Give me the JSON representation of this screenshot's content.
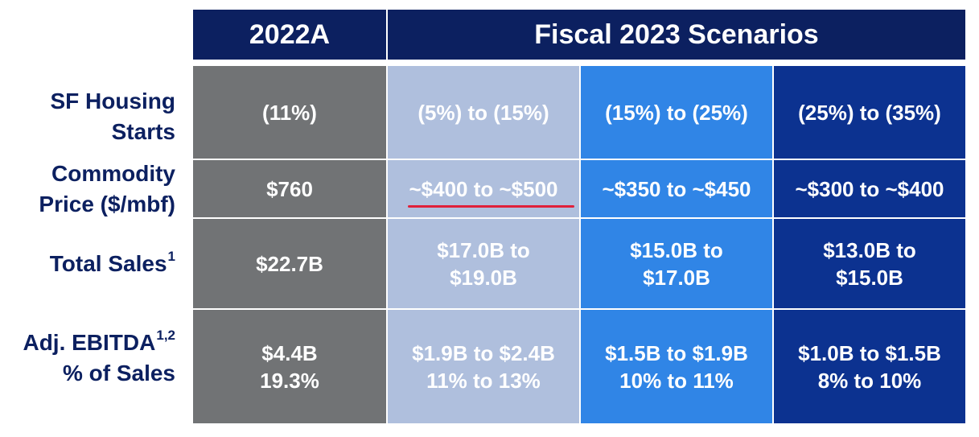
{
  "headers": {
    "actual": "2022A",
    "scenarios": "Fiscal 2023 Scenarios"
  },
  "rows": [
    {
      "label_lines": [
        "SF Housing",
        "Starts"
      ],
      "sup": "",
      "cells": [
        [
          "(11%)"
        ],
        [
          "(5%) to (15%)"
        ],
        [
          "(15%) to (25%)"
        ],
        [
          "(25%) to (35%)"
        ]
      ]
    },
    {
      "label_lines": [
        "Commodity",
        "Price ($/mbf)"
      ],
      "sup": "",
      "cells": [
        [
          "$760"
        ],
        [
          "~$400 to ~$500"
        ],
        [
          "~$350 to ~$450"
        ],
        [
          "~$300 to ~$400"
        ]
      ]
    },
    {
      "label_lines": [
        "Total Sales"
      ],
      "sup": "1",
      "cells": [
        [
          "$22.7B"
        ],
        [
          "$17.0B to",
          "$19.0B"
        ],
        [
          "$15.0B to",
          "$17.0B"
        ],
        [
          "$13.0B to",
          "$15.0B"
        ]
      ]
    },
    {
      "label_lines": [
        "Adj. EBITDA",
        "% of Sales"
      ],
      "sup": "1,2",
      "cells": [
        [
          "$4.4B",
          "19.3%"
        ],
        [
          "$1.9B to $2.4B",
          "11% to 13%"
        ],
        [
          "$1.5B to $1.9B",
          "10% to 11%"
        ],
        [
          "$1.0B to $1.5B",
          "8% to 10%"
        ]
      ]
    }
  ],
  "colors": {
    "header": "#0c2060",
    "actual_column": "#717375",
    "scenario_low": "#afbfdd",
    "scenario_mid": "#3085e6",
    "scenario_high": "#0c3290",
    "label_text": "#0c2060",
    "highlight_underline": "#e0203a"
  }
}
